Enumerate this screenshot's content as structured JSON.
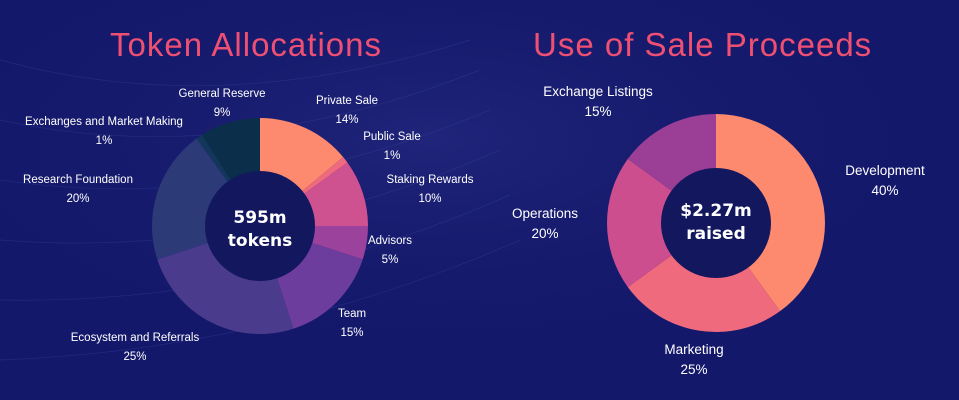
{
  "colors": {
    "background": "#14186a",
    "title": "#ee4f72",
    "center": "#13175e"
  },
  "chart_data": [
    {
      "type": "pie",
      "title": "Token Allocations",
      "center_label": [
        "595m",
        "tokens"
      ],
      "slices": [
        {
          "label": "Private Sale",
          "value": 14,
          "display": "14%",
          "color": "#fd8a6e"
        },
        {
          "label": "Public Sale",
          "value": 1,
          "display": "1%",
          "color": "#f06a7d"
        },
        {
          "label": "Staking Rewards",
          "value": 10,
          "display": "10%",
          "color": "#cf5290"
        },
        {
          "label": "Advisors",
          "value": 5,
          "display": "5%",
          "color": "#9b429c"
        },
        {
          "label": "Team",
          "value": 15,
          "display": "15%",
          "color": "#6d3d9d"
        },
        {
          "label": "Ecosystem and Referrals",
          "value": 25,
          "display": "25%",
          "color": "#4b3b8c"
        },
        {
          "label": "Research Foundation",
          "value": 20,
          "display": "20%",
          "color": "#2c3a78"
        },
        {
          "label": "Exchanges and Market Making",
          "value": 1,
          "display": "1%",
          "color": "#13375a"
        },
        {
          "label": "General Reserve",
          "value": 9,
          "display": "9%",
          "color": "#0b2e4a"
        }
      ]
    },
    {
      "type": "pie",
      "title": "Use of Sale Proceeds",
      "center_label": [
        "$2.27m",
        "raised"
      ],
      "slices": [
        {
          "label": "Development",
          "value": 40,
          "display": "40%",
          "color": "#fd8a6e"
        },
        {
          "label": "Marketing",
          "value": 25,
          "display": "25%",
          "color": "#f06a7d"
        },
        {
          "label": "Operations",
          "value": 20,
          "display": "20%",
          "color": "#cc4e8e"
        },
        {
          "label": "Exchange Listings",
          "value": 15,
          "display": "15%",
          "color": "#9a3f95"
        }
      ]
    }
  ]
}
